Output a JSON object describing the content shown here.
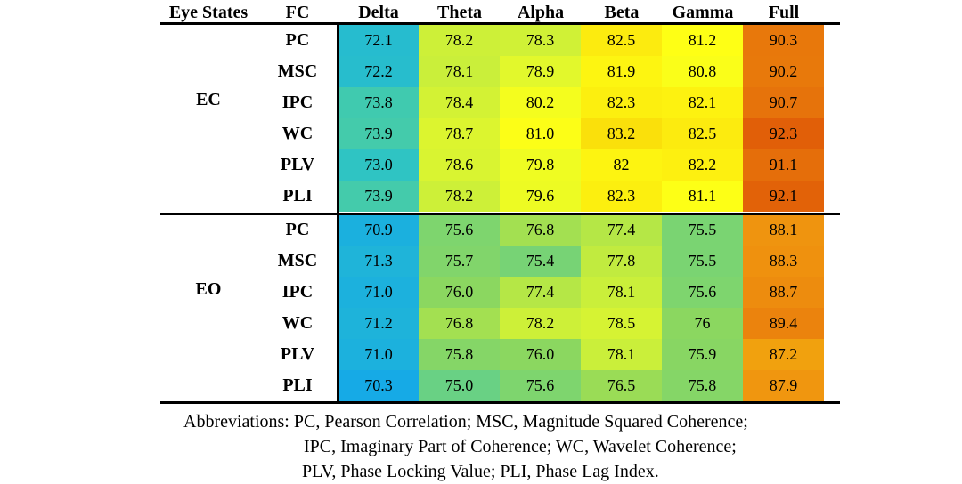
{
  "chart_data": {
    "type": "heatmap",
    "headers": [
      "Eye States",
      "FC",
      "Delta",
      "Theta",
      "Alpha",
      "Beta",
      "Gamma",
      "Full"
    ],
    "bands": [
      "Delta",
      "Theta",
      "Alpha",
      "Beta",
      "Gamma",
      "Full"
    ],
    "groups": [
      {
        "state": "EC",
        "rows": [
          {
            "fc": "PC",
            "values": [
              "72.1",
              "78.2",
              "78.3",
              "82.5",
              "81.2",
              "90.3"
            ]
          },
          {
            "fc": "MSC",
            "values": [
              "72.2",
              "78.1",
              "78.9",
              "81.9",
              "80.8",
              "90.2"
            ]
          },
          {
            "fc": "IPC",
            "values": [
              "73.8",
              "78.4",
              "80.2",
              "82.3",
              "82.1",
              "90.7"
            ]
          },
          {
            "fc": "WC",
            "values": [
              "73.9",
              "78.7",
              "81.0",
              "83.2",
              "82.5",
              "92.3"
            ]
          },
          {
            "fc": "PLV",
            "values": [
              "73.0",
              "78.6",
              "79.8",
              "82",
              "82.2",
              "91.1"
            ]
          },
          {
            "fc": "PLI",
            "values": [
              "73.9",
              "78.2",
              "79.6",
              "82.3",
              "81.1",
              "92.1"
            ]
          }
        ]
      },
      {
        "state": "EO",
        "rows": [
          {
            "fc": "PC",
            "values": [
              "70.9",
              "75.6",
              "76.8",
              "77.4",
              "75.5",
              "88.1"
            ]
          },
          {
            "fc": "MSC",
            "values": [
              "71.3",
              "75.7",
              "75.4",
              "77.8",
              "75.5",
              "88.3"
            ]
          },
          {
            "fc": "IPC",
            "values": [
              "71.0",
              "76.0",
              "77.4",
              "78.1",
              "75.6",
              "88.7"
            ]
          },
          {
            "fc": "WC",
            "values": [
              "71.2",
              "76.8",
              "78.2",
              "78.5",
              "76",
              "89.4"
            ]
          },
          {
            "fc": "PLV",
            "values": [
              "71.0",
              "75.8",
              "76.0",
              "78.1",
              "75.9",
              "87.2"
            ]
          },
          {
            "fc": "PLI",
            "values": [
              "70.3",
              "75.0",
              "75.6",
              "76.5",
              "75.8",
              "87.9"
            ]
          }
        ]
      }
    ],
    "colormap": "parula",
    "grid": false,
    "legend": "none"
  },
  "abbreviations": [
    "Abbreviations: PC, Pearson Correlation; MSC, Magnitude Squared Coherence;",
    "IPC, Imaginary Part of Coherence; WC, Wavelet Coherence;",
    "PLV, Phase Locking Value; PLI, Phase Lag Index."
  ]
}
